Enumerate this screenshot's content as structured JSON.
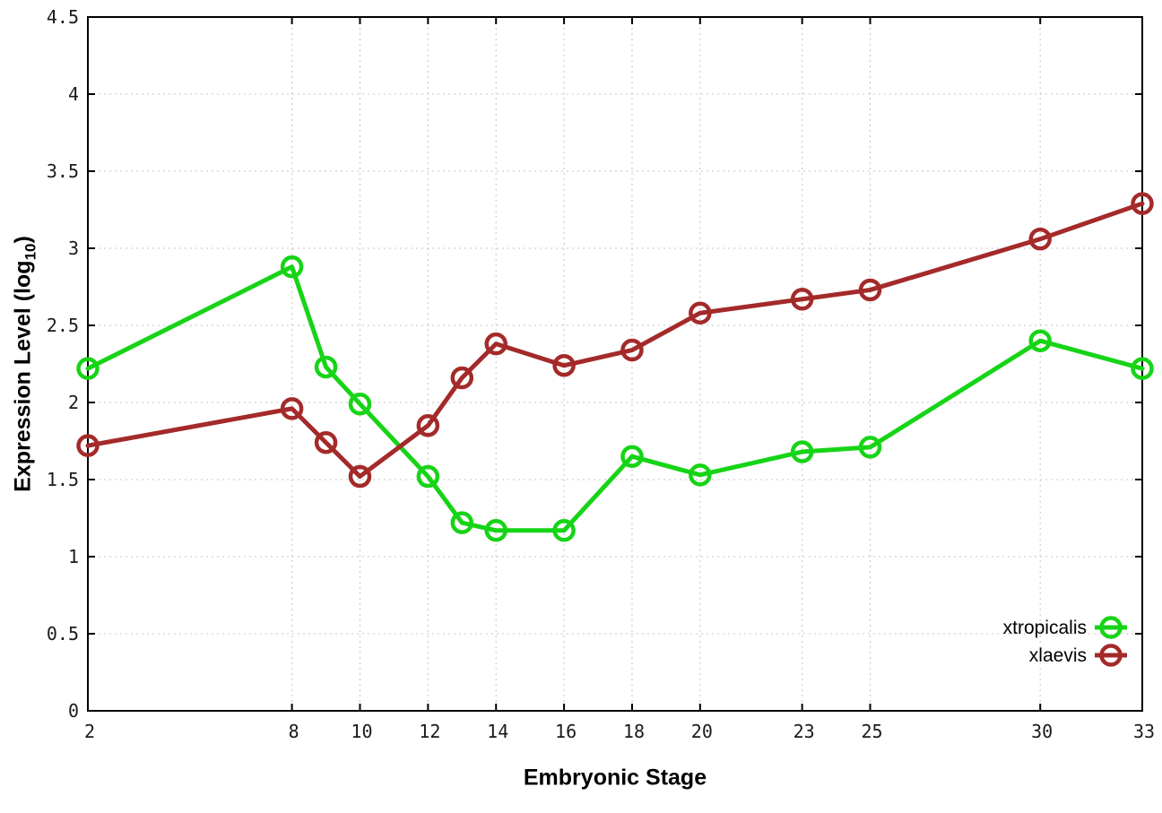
{
  "chart_data": {
    "type": "line",
    "title": "",
    "xlabel": "Embryonic Stage",
    "ylabel_prefix": "Expression Level (log",
    "ylabel_sub": "10",
    "ylabel_suffix": ")",
    "xlim": [
      2,
      33
    ],
    "ylim": [
      0,
      4.5
    ],
    "grid": true,
    "grid_style": "dotted",
    "grid_color": "#c4c4c4",
    "axis_color": "#000000",
    "tick_label_color": "#1a1a1a",
    "background_color": "#ffffff",
    "x_ticks": [
      {
        "label": "2",
        "value": 2
      },
      {
        "label": "8",
        "value": 8
      },
      {
        "label": "10",
        "value": 10
      },
      {
        "label": "12",
        "value": 12
      },
      {
        "label": "14",
        "value": 14
      },
      {
        "label": "16",
        "value": 16
      },
      {
        "label": "18",
        "value": 18
      },
      {
        "label": "20",
        "value": 20
      },
      {
        "label": "23",
        "value": 23
      },
      {
        "label": "25",
        "value": 25
      },
      {
        "label": "30",
        "value": 30
      },
      {
        "label": "33",
        "value": 33
      }
    ],
    "y_ticks": [
      {
        "label": "0",
        "value": 0
      },
      {
        "label": "0.5",
        "value": 0.5
      },
      {
        "label": "1",
        "value": 1
      },
      {
        "label": "1.5",
        "value": 1.5
      },
      {
        "label": "2",
        "value": 2
      },
      {
        "label": "2.5",
        "value": 2.5
      },
      {
        "label": "3",
        "value": 3
      },
      {
        "label": "3.5",
        "value": 3.5
      },
      {
        "label": "4",
        "value": 4
      },
      {
        "label": "4.5",
        "value": 4.5
      }
    ],
    "x": [
      2,
      8,
      9,
      10,
      12,
      13,
      14,
      16,
      18,
      20,
      23,
      25,
      30,
      33
    ],
    "series": [
      {
        "name": "xtropicalis",
        "color": "#16d416",
        "marker": "open-circle",
        "values": [
          2.22,
          2.88,
          2.23,
          1.99,
          1.52,
          1.22,
          1.17,
          1.17,
          1.65,
          1.53,
          1.68,
          1.71,
          2.4,
          2.22
        ]
      },
      {
        "name": "xlaevis",
        "color": "#a42a2a",
        "marker": "open-circle",
        "values": [
          1.72,
          1.96,
          1.74,
          1.52,
          1.85,
          2.16,
          2.38,
          2.24,
          2.34,
          2.58,
          2.67,
          2.73,
          3.06,
          3.29
        ]
      }
    ],
    "legend_position": "bottom-right"
  }
}
